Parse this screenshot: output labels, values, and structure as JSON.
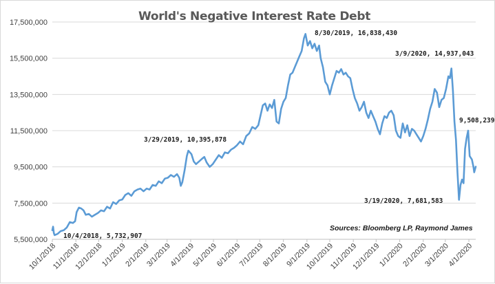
{
  "chart_data": {
    "type": "line",
    "title": "World's  Negative Interest Rate Debt",
    "source": "Sources:  Bloomberg LP, Raymond James",
    "xlabel": "",
    "ylabel": "",
    "ylim": [
      5500000,
      17500000
    ],
    "yticks": [
      5500000,
      7500000,
      9500000,
      11500000,
      13500000,
      15500000,
      17500000
    ],
    "ytick_labels": [
      "5,500,000",
      "7,500,000",
      "9,500,000",
      "11,500,000",
      "13,500,000",
      "15,500,000",
      "17,500,000"
    ],
    "xlim": [
      "2018-10-01",
      "2020-04-10"
    ],
    "xtick_labels": [
      "10/1/2018",
      "11/1/2018",
      "12/1/2018",
      "1/1/2019",
      "2/1/2019",
      "3/1/2019",
      "4/1/2019",
      "5/1/2019",
      "6/1/2019",
      "7/1/2019",
      "8/1/2019",
      "9/1/2019",
      "10/1/2019",
      "11/1/2019",
      "12/1/2019",
      "1/1/2020",
      "2/1/2020",
      "3/1/2020",
      "4/1/2020"
    ],
    "xticks": [
      "2018-10-01",
      "2018-11-01",
      "2018-12-01",
      "2019-01-01",
      "2019-02-01",
      "2019-03-01",
      "2019-04-01",
      "2019-05-01",
      "2019-06-01",
      "2019-07-01",
      "2019-08-01",
      "2019-09-01",
      "2019-10-01",
      "2019-11-01",
      "2019-12-01",
      "2020-01-01",
      "2020-02-01",
      "2020-03-01",
      "2020-04-01"
    ],
    "grid": true,
    "line_color": "#5b9bd5",
    "series": [
      {
        "points": [
          [
            "2018-10-01",
            6000000
          ],
          [
            "2018-10-02",
            6200000
          ],
          [
            "2018-10-03",
            5850000
          ],
          [
            "2018-10-04",
            5732907
          ],
          [
            "2018-10-08",
            5800000
          ],
          [
            "2018-10-12",
            5950000
          ],
          [
            "2018-10-16",
            6000000
          ],
          [
            "2018-10-20",
            6150000
          ],
          [
            "2018-10-24",
            6450000
          ],
          [
            "2018-10-28",
            6400000
          ],
          [
            "2018-10-31",
            6500000
          ],
          [
            "2018-11-02",
            7000000
          ],
          [
            "2018-11-05",
            7250000
          ],
          [
            "2018-11-08",
            7200000
          ],
          [
            "2018-11-11",
            7100000
          ],
          [
            "2018-11-14",
            6850000
          ],
          [
            "2018-11-18",
            6900000
          ],
          [
            "2018-11-22",
            6750000
          ],
          [
            "2018-11-26",
            6850000
          ],
          [
            "2018-11-30",
            6950000
          ],
          [
            "2018-12-04",
            7100000
          ],
          [
            "2018-12-08",
            7050000
          ],
          [
            "2018-12-12",
            7300000
          ],
          [
            "2018-12-16",
            7200000
          ],
          [
            "2018-12-20",
            7550000
          ],
          [
            "2018-12-24",
            7450000
          ],
          [
            "2018-12-28",
            7650000
          ],
          [
            "2019-01-01",
            7700000
          ],
          [
            "2019-01-05",
            7950000
          ],
          [
            "2019-01-09",
            8050000
          ],
          [
            "2019-01-13",
            7900000
          ],
          [
            "2019-01-17",
            8150000
          ],
          [
            "2019-01-21",
            8250000
          ],
          [
            "2019-01-25",
            8300000
          ],
          [
            "2019-01-29",
            8150000
          ],
          [
            "2019-02-02",
            8300000
          ],
          [
            "2019-02-06",
            8250000
          ],
          [
            "2019-02-10",
            8500000
          ],
          [
            "2019-02-14",
            8450000
          ],
          [
            "2019-02-18",
            8700000
          ],
          [
            "2019-02-22",
            8600000
          ],
          [
            "2019-02-26",
            8850000
          ],
          [
            "2019-03-02",
            8900000
          ],
          [
            "2019-03-06",
            9050000
          ],
          [
            "2019-03-10",
            8950000
          ],
          [
            "2019-03-14",
            9100000
          ],
          [
            "2019-03-17",
            8900000
          ],
          [
            "2019-03-19",
            8450000
          ],
          [
            "2019-03-21",
            8650000
          ],
          [
            "2019-03-24",
            9300000
          ],
          [
            "2019-03-27",
            10100000
          ],
          [
            "2019-03-29",
            10395878
          ],
          [
            "2019-04-02",
            10200000
          ],
          [
            "2019-04-05",
            9800000
          ],
          [
            "2019-04-08",
            9650000
          ],
          [
            "2019-04-12",
            9800000
          ],
          [
            "2019-04-16",
            9950000
          ],
          [
            "2019-04-19",
            10050000
          ],
          [
            "2019-04-22",
            9750000
          ],
          [
            "2019-04-26",
            9500000
          ],
          [
            "2019-04-30",
            9650000
          ],
          [
            "2019-05-04",
            9900000
          ],
          [
            "2019-05-08",
            10150000
          ],
          [
            "2019-05-12",
            10000000
          ],
          [
            "2019-05-16",
            10300000
          ],
          [
            "2019-05-20",
            10250000
          ],
          [
            "2019-05-24",
            10450000
          ],
          [
            "2019-05-28",
            10550000
          ],
          [
            "2019-06-01",
            10700000
          ],
          [
            "2019-06-05",
            10900000
          ],
          [
            "2019-06-09",
            10750000
          ],
          [
            "2019-06-13",
            11200000
          ],
          [
            "2019-06-17",
            11350000
          ],
          [
            "2019-06-21",
            11700000
          ],
          [
            "2019-06-25",
            11600000
          ],
          [
            "2019-06-29",
            11800000
          ],
          [
            "2019-07-02",
            12350000
          ],
          [
            "2019-07-05",
            12900000
          ],
          [
            "2019-07-08",
            13000000
          ],
          [
            "2019-07-11",
            12600000
          ],
          [
            "2019-07-14",
            12950000
          ],
          [
            "2019-07-17",
            12750000
          ],
          [
            "2019-07-20",
            13200000
          ],
          [
            "2019-07-23",
            12000000
          ],
          [
            "2019-07-26",
            11900000
          ],
          [
            "2019-07-29",
            12700000
          ],
          [
            "2019-08-01",
            13100000
          ],
          [
            "2019-08-04",
            13300000
          ],
          [
            "2019-08-07",
            14000000
          ],
          [
            "2019-08-10",
            14600000
          ],
          [
            "2019-08-13",
            14700000
          ],
          [
            "2019-08-16",
            15000000
          ],
          [
            "2019-08-19",
            15300000
          ],
          [
            "2019-08-22",
            15600000
          ],
          [
            "2019-08-25",
            15900000
          ],
          [
            "2019-08-28",
            16600000
          ],
          [
            "2019-08-30",
            16838430
          ],
          [
            "2019-09-02",
            16200000
          ],
          [
            "2019-09-05",
            16450000
          ],
          [
            "2019-09-08",
            16050000
          ],
          [
            "2019-09-11",
            16300000
          ],
          [
            "2019-09-14",
            15900000
          ],
          [
            "2019-09-17",
            16200000
          ],
          [
            "2019-09-19",
            15500000
          ],
          [
            "2019-09-22",
            15000000
          ],
          [
            "2019-09-25",
            14200000
          ],
          [
            "2019-09-28",
            14000000
          ],
          [
            "2019-10-01",
            13500000
          ],
          [
            "2019-10-04",
            14000000
          ],
          [
            "2019-10-07",
            14400000
          ],
          [
            "2019-10-10",
            14800000
          ],
          [
            "2019-10-13",
            14700000
          ],
          [
            "2019-10-16",
            14900000
          ],
          [
            "2019-10-19",
            14600000
          ],
          [
            "2019-10-22",
            14700000
          ],
          [
            "2019-10-25",
            14500000
          ],
          [
            "2019-10-28",
            14400000
          ],
          [
            "2019-10-31",
            13800000
          ],
          [
            "2019-11-03",
            13300000
          ],
          [
            "2019-11-06",
            13000000
          ],
          [
            "2019-11-09",
            12600000
          ],
          [
            "2019-11-12",
            12800000
          ],
          [
            "2019-11-15",
            13100000
          ],
          [
            "2019-11-18",
            12500000
          ],
          [
            "2019-11-21",
            12200000
          ],
          [
            "2019-11-24",
            12600000
          ],
          [
            "2019-11-27",
            12300000
          ],
          [
            "2019-11-30",
            12000000
          ],
          [
            "2019-12-03",
            11600000
          ],
          [
            "2019-12-06",
            11300000
          ],
          [
            "2019-12-09",
            11900000
          ],
          [
            "2019-12-12",
            12300000
          ],
          [
            "2019-12-15",
            12200000
          ],
          [
            "2019-12-18",
            12500000
          ],
          [
            "2019-12-21",
            12600000
          ],
          [
            "2019-12-24",
            12350000
          ],
          [
            "2019-12-27",
            11500000
          ],
          [
            "2019-12-30",
            11200000
          ],
          [
            "2020-01-02",
            11100000
          ],
          [
            "2020-01-05",
            11900000
          ],
          [
            "2020-01-08",
            11400000
          ],
          [
            "2020-01-11",
            11800000
          ],
          [
            "2020-01-14",
            11200000
          ],
          [
            "2020-01-17",
            11600000
          ],
          [
            "2020-01-20",
            11500000
          ],
          [
            "2020-01-23",
            11300000
          ],
          [
            "2020-01-26",
            11100000
          ],
          [
            "2020-01-29",
            10900000
          ],
          [
            "2020-02-01",
            11200000
          ],
          [
            "2020-02-04",
            11600000
          ],
          [
            "2020-02-07",
            12100000
          ],
          [
            "2020-02-10",
            12700000
          ],
          [
            "2020-02-13",
            13100000
          ],
          [
            "2020-02-16",
            13800000
          ],
          [
            "2020-02-19",
            13600000
          ],
          [
            "2020-02-22",
            12800000
          ],
          [
            "2020-02-25",
            13200000
          ],
          [
            "2020-02-28",
            13300000
          ],
          [
            "2020-03-02",
            13800000
          ],
          [
            "2020-03-05",
            14500000
          ],
          [
            "2020-03-07",
            14400000
          ],
          [
            "2020-03-09",
            14937043
          ],
          [
            "2020-03-11",
            13700000
          ],
          [
            "2020-03-13",
            12000000
          ],
          [
            "2020-03-15",
            11000000
          ],
          [
            "2020-03-17",
            9200000
          ],
          [
            "2020-03-19",
            7681583
          ],
          [
            "2020-03-21",
            8500000
          ],
          [
            "2020-03-23",
            8800000
          ],
          [
            "2020-03-25",
            8600000
          ],
          [
            "2020-03-27",
            10500000
          ],
          [
            "2020-03-29",
            11100000
          ],
          [
            "2020-03-31",
            11500000
          ],
          [
            "2020-04-02",
            10100000
          ],
          [
            "2020-04-05",
            9900000
          ],
          [
            "2020-04-07",
            9500000
          ],
          [
            "2020-04-08",
            9200000
          ],
          [
            "2020-04-10",
            9508239
          ]
        ]
      }
    ],
    "annotations": [
      {
        "text": "10/4/2018,  5,732,907"
      },
      {
        "text": "3/29/2019,  10,395,878"
      },
      {
        "text": "8/30/2019,  16,838,430"
      },
      {
        "text": "3/9/2020,  14,937,043"
      },
      {
        "text": "9,508,239"
      },
      {
        "text": "3/19/2020,  7,681,583"
      }
    ]
  }
}
